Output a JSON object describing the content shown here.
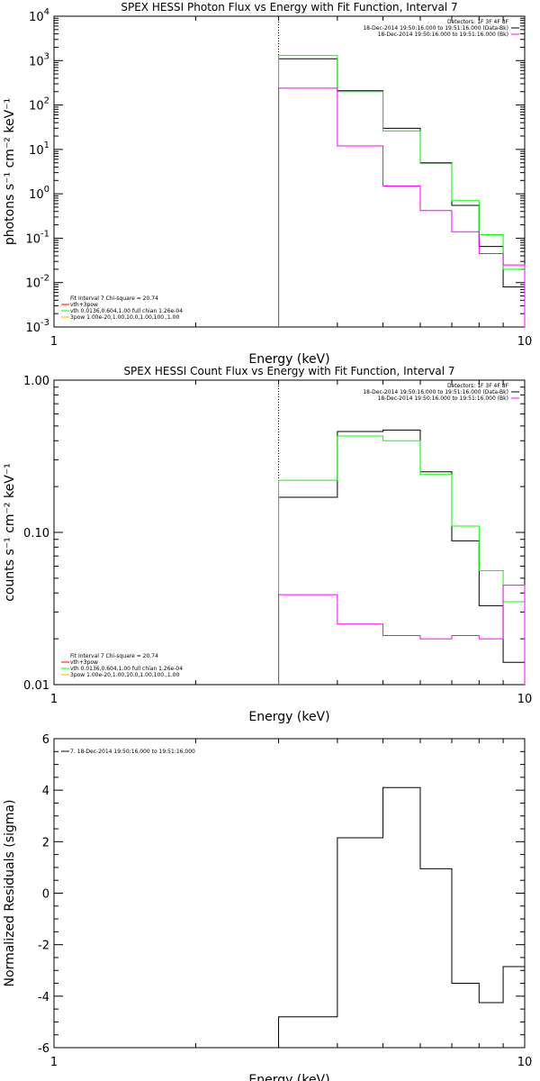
{
  "colors": {
    "black": "#000000",
    "green": "#00ff00",
    "magenta": "#ff00ff",
    "red": "#ff0000",
    "orange": "#ffb000"
  },
  "chart_data": [
    {
      "type": "line",
      "title": "SPEX HESSI Photon Flux vs Energy with Fit Function, Interval 7",
      "xlabel": "Energy (keV)",
      "ylabel": "photons s⁻¹ cm⁻² keV⁻¹",
      "xscale": "log",
      "yscale": "log",
      "xlim": [
        1,
        10
      ],
      "ylim": [
        0.001,
        10000
      ],
      "x_tick_labels": [
        "1",
        "10"
      ],
      "y_ticks": [
        {
          "v": 0.001,
          "b": "10",
          "e": "-3"
        },
        {
          "v": 0.01,
          "b": "10",
          "e": "-2"
        },
        {
          "v": 0.1,
          "b": "10",
          "e": "-1"
        },
        {
          "v": 1,
          "b": "10",
          "e": "0"
        },
        {
          "v": 10,
          "b": "10",
          "e": "1"
        },
        {
          "v": 100,
          "b": "10",
          "e": "2"
        },
        {
          "v": 1000,
          "b": "10",
          "e": "3"
        },
        {
          "v": 10000,
          "b": "10",
          "e": "4"
        }
      ],
      "vline_x": 3,
      "bin_edges": [
        3,
        4,
        5,
        6,
        7,
        8,
        9,
        10
      ],
      "series": [
        {
          "color": "black",
          "values": [
            1100,
            210,
            30,
            5,
            0.55,
            0.065,
            0.008
          ]
        },
        {
          "color": "green",
          "values": [
            1300,
            200,
            26,
            4.8,
            0.7,
            0.12,
            0.02
          ]
        },
        {
          "color": "magenta",
          "values": [
            240,
            12,
            1.5,
            0.42,
            0.14,
            0.045,
            0.025
          ]
        }
      ],
      "legend_tr": {
        "lines": [
          {
            "text": "Detectors: 1F 3F 4F 8F",
            "color": null
          },
          {
            "text": "18-Dec-2014 19:50:16.000 to 19:51:16.000 (Data-Bk)",
            "color": "black"
          },
          {
            "text": "18-Dec-2014 19:50:16.000 to 19:51:16.000 (Bk)",
            "color": "magenta"
          }
        ]
      },
      "legend_bl": {
        "lines": [
          {
            "text": "Fit Interval 7   Chi-square = 20.74",
            "color": null
          },
          {
            "text": "vth+3pow",
            "color": "red"
          },
          {
            "text": "vth 0.0136,0.604,1.00  full chian 1.26e-04",
            "color": "green"
          },
          {
            "text": "3pow 1.00e-20,1.00,10.0,1.00,100.,1.00",
            "color": "orange"
          }
        ]
      }
    },
    {
      "type": "line",
      "title": "SPEX HESSI Count Flux vs Energy with Fit Function, Interval 7",
      "xlabel": "Energy (keV)",
      "ylabel": "counts s⁻¹ cm⁻² keV⁻¹",
      "xscale": "log",
      "yscale": "log",
      "xlim": [
        1,
        10
      ],
      "ylim": [
        0.01,
        1.0
      ],
      "x_tick_labels": [
        "1",
        "10"
      ],
      "y_ticks": [
        {
          "v": 0.01,
          "b": "0.01",
          "e": ""
        },
        {
          "v": 0.1,
          "b": "0.10",
          "e": ""
        },
        {
          "v": 1.0,
          "b": "1.00",
          "e": ""
        }
      ],
      "vline_x": 3,
      "bin_edges": [
        3,
        4,
        5,
        6,
        7,
        8,
        9,
        10
      ],
      "series": [
        {
          "color": "black",
          "values": [
            0.17,
            0.46,
            0.47,
            0.25,
            0.088,
            0.033,
            0.014
          ]
        },
        {
          "color": "green",
          "values": [
            0.22,
            0.43,
            0.4,
            0.24,
            0.11,
            0.056,
            0.035
          ]
        },
        {
          "color": "magenta",
          "values": [
            0.039,
            0.025,
            0.021,
            0.02,
            0.021,
            0.02,
            0.045
          ]
        }
      ],
      "legend_tr": {
        "lines": [
          {
            "text": "Detectors: 1F 3F 4F 8F",
            "color": null
          },
          {
            "text": "18-Dec-2014 19:50:16.000 to 19:51:16.000 (Data-Bk)",
            "color": "black"
          },
          {
            "text": "18-Dec-2014 19:50:16.000 to 19:51:16.000 (Bk)",
            "color": "magenta"
          }
        ]
      },
      "legend_bl": {
        "lines": [
          {
            "text": "Fit Interval 7   Chi-square = 20.74",
            "color": null
          },
          {
            "text": "vth+3pow",
            "color": "red"
          },
          {
            "text": "vth 0.0136,0.604,1.00  full chian 1.26e-04",
            "color": "green"
          },
          {
            "text": "3pow 1.00e-20,1.00,10.0,1.00,100.,1.00",
            "color": "orange"
          }
        ]
      }
    },
    {
      "type": "line",
      "title": "",
      "xlabel": "Energy (keV)",
      "ylabel": "Normalized Residuals (sigma)",
      "xscale": "log",
      "yscale": "linear",
      "xlim": [
        1,
        10
      ],
      "ylim": [
        -6,
        6
      ],
      "x_tick_labels": [
        "1",
        "10"
      ],
      "y_ticks": [
        {
          "v": -6,
          "b": "-6",
          "e": ""
        },
        {
          "v": -4,
          "b": "-4",
          "e": ""
        },
        {
          "v": -2,
          "b": "-2",
          "e": ""
        },
        {
          "v": 0,
          "b": "0",
          "e": ""
        },
        {
          "v": 2,
          "b": "2",
          "e": ""
        },
        {
          "v": 4,
          "b": "4",
          "e": ""
        },
        {
          "v": 6,
          "b": "6",
          "e": ""
        }
      ],
      "vline_x": null,
      "bin_edges": [
        3,
        4,
        5,
        6,
        7,
        8,
        9,
        10
      ],
      "series": [
        {
          "color": "black",
          "values": [
            -4.8,
            2.15,
            4.1,
            0.95,
            -3.5,
            -4.25,
            -2.85
          ]
        }
      ],
      "legend_tl": {
        "lines": [
          {
            "text": "7. 18-Dec-2014 19:50:16.000 to 19:51:16.000",
            "color": "black"
          }
        ]
      }
    }
  ]
}
